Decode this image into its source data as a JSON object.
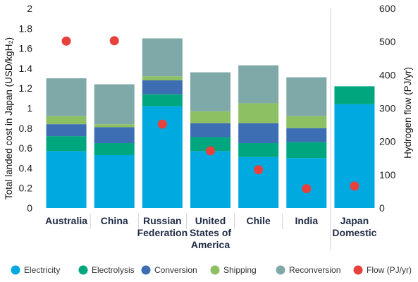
{
  "chart_data": {
    "type": "bar",
    "stacked": true,
    "categories": [
      [
        "Australia"
      ],
      [
        "China"
      ],
      [
        "Russian",
        "Federation"
      ],
      [
        "United",
        "States of",
        "America"
      ],
      [
        "Chile"
      ],
      [
        "India"
      ],
      [
        "Japan",
        "Domestic"
      ]
    ],
    "ylabel": "Total landed cost in Japan (USD/kgH₂)",
    "y2label": "Hydrogen flow (PJ/yr)",
    "ylim": [
      0,
      2
    ],
    "y2lim": [
      0,
      600
    ],
    "yticks": [
      "0",
      "0.2",
      "0.4",
      "0.6",
      "0.8",
      "1",
      "1.2",
      "1.4",
      "1.6",
      "1.8",
      "2"
    ],
    "y2ticks": [
      "0",
      "100",
      "200",
      "300",
      "400",
      "500",
      "600"
    ],
    "grid": false,
    "legend_position": "bottom",
    "series": [
      {
        "name": "Electricity",
        "color": "#00a9e0",
        "values": [
          0.57,
          0.53,
          1.02,
          0.57,
          0.51,
          0.5,
          1.04
        ]
      },
      {
        "name": "Electrolysis",
        "color": "#00a67e",
        "values": [
          0.15,
          0.12,
          0.12,
          0.14,
          0.14,
          0.16,
          0.18
        ]
      },
      {
        "name": "Conversion",
        "color": "#3d6eb4",
        "values": [
          0.12,
          0.16,
          0.14,
          0.14,
          0.2,
          0.14,
          0.0
        ]
      },
      {
        "name": "Shipping",
        "color": "#8cc063",
        "values": [
          0.08,
          0.03,
          0.04,
          0.12,
          0.2,
          0.12,
          0.0
        ]
      },
      {
        "name": "Reconversion",
        "color": "#7fa9a8",
        "values": [
          0.38,
          0.4,
          0.38,
          0.39,
          0.38,
          0.39,
          0.0
        ]
      }
    ],
    "flow": {
      "name": "Flow (PJ/yr)",
      "color": "#e8413c",
      "axis": "right",
      "values": [
        502,
        503,
        252,
        172,
        115,
        58,
        66
      ]
    }
  }
}
